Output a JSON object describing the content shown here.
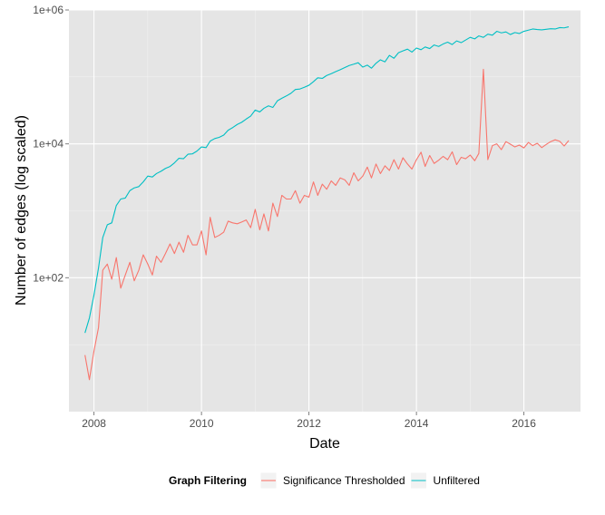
{
  "chart_data": {
    "type": "line",
    "xlabel": "Date",
    "ylabel": "Number of edges (log scaled)",
    "x_scale": "time",
    "y_scale": "log10",
    "xlim": [
      "2007-07-15",
      "2017-01-20"
    ],
    "ylim": [
      1,
      1000000
    ],
    "x_ticks": [
      {
        "value": "2008-01-01",
        "label": "2008"
      },
      {
        "value": "2010-01-01",
        "label": "2010"
      },
      {
        "value": "2012-01-01",
        "label": "2012"
      },
      {
        "value": "2014-01-01",
        "label": "2014"
      },
      {
        "value": "2016-01-01",
        "label": "2016"
      }
    ],
    "y_ticks": [
      {
        "value": 100,
        "label": "1e+02"
      },
      {
        "value": 10000,
        "label": "1e+04"
      },
      {
        "value": 1000000,
        "label": "1e+06"
      }
    ],
    "grid": true,
    "legend": {
      "title": "Graph Filtering",
      "position": "bottom"
    },
    "colors": {
      "Significance Thresholded": "#F8766D",
      "Unfiltered": "#00BFC4"
    },
    "series": [
      {
        "name": "Unfiltered",
        "points": [
          [
            "2007-11",
            15
          ],
          [
            "2007-12",
            25
          ],
          [
            "2008-01",
            55
          ],
          [
            "2008-02",
            140
          ],
          [
            "2008-03",
            400
          ],
          [
            "2008-04",
            620
          ],
          [
            "2008-05",
            660
          ],
          [
            "2008-06",
            1200
          ],
          [
            "2008-07",
            1500
          ],
          [
            "2008-08",
            1550
          ],
          [
            "2008-09",
            2000
          ],
          [
            "2008-10",
            2200
          ],
          [
            "2008-11",
            2300
          ],
          [
            "2008-12",
            2700
          ],
          [
            "2009-01",
            3300
          ],
          [
            "2009-02",
            3200
          ],
          [
            "2009-03",
            3600
          ],
          [
            "2009-04",
            3900
          ],
          [
            "2009-05",
            4300
          ],
          [
            "2009-06",
            4600
          ],
          [
            "2009-07",
            5200
          ],
          [
            "2009-08",
            6100
          ],
          [
            "2009-09",
            6000
          ],
          [
            "2009-10",
            7000
          ],
          [
            "2009-11",
            7100
          ],
          [
            "2009-12",
            7800
          ],
          [
            "2010-01",
            9000
          ],
          [
            "2010-02",
            8800
          ],
          [
            "2010-03",
            11000
          ],
          [
            "2010-04",
            12000
          ],
          [
            "2010-05",
            12500
          ],
          [
            "2010-06",
            13500
          ],
          [
            "2010-07",
            16000
          ],
          [
            "2010-08",
            17500
          ],
          [
            "2010-09",
            19500
          ],
          [
            "2010-10",
            21000
          ],
          [
            "2010-11",
            23500
          ],
          [
            "2010-12",
            26000
          ],
          [
            "2011-01",
            32000
          ],
          [
            "2011-02",
            30000
          ],
          [
            "2011-03",
            34000
          ],
          [
            "2011-04",
            37000
          ],
          [
            "2011-05",
            35000
          ],
          [
            "2011-06",
            44000
          ],
          [
            "2011-07",
            48000
          ],
          [
            "2011-08",
            52000
          ],
          [
            "2011-09",
            57000
          ],
          [
            "2011-10",
            65000
          ],
          [
            "2011-11",
            66000
          ],
          [
            "2011-12",
            70000
          ],
          [
            "2012-01",
            75000
          ],
          [
            "2012-02",
            85000
          ],
          [
            "2012-03",
            97000
          ],
          [
            "2012-04",
            95000
          ],
          [
            "2012-05",
            105000
          ],
          [
            "2012-06",
            112000
          ],
          [
            "2012-07",
            120000
          ],
          [
            "2012-08",
            128000
          ],
          [
            "2012-09",
            138000
          ],
          [
            "2012-10",
            148000
          ],
          [
            "2012-11",
            155000
          ],
          [
            "2012-12",
            163000
          ],
          [
            "2013-01",
            140000
          ],
          [
            "2013-02",
            150000
          ],
          [
            "2013-03",
            135000
          ],
          [
            "2013-04",
            160000
          ],
          [
            "2013-05",
            180000
          ],
          [
            "2013-06",
            168000
          ],
          [
            "2013-07",
            210000
          ],
          [
            "2013-08",
            190000
          ],
          [
            "2013-09",
            230000
          ],
          [
            "2013-10",
            245000
          ],
          [
            "2013-11",
            260000
          ],
          [
            "2013-12",
            235000
          ],
          [
            "2014-01",
            270000
          ],
          [
            "2014-02",
            255000
          ],
          [
            "2014-03",
            280000
          ],
          [
            "2014-04",
            265000
          ],
          [
            "2014-05",
            300000
          ],
          [
            "2014-06",
            285000
          ],
          [
            "2014-07",
            310000
          ],
          [
            "2014-08",
            330000
          ],
          [
            "2014-09",
            305000
          ],
          [
            "2014-10",
            345000
          ],
          [
            "2014-11",
            325000
          ],
          [
            "2014-12",
            355000
          ],
          [
            "2015-01",
            390000
          ],
          [
            "2015-02",
            370000
          ],
          [
            "2015-03",
            410000
          ],
          [
            "2015-04",
            390000
          ],
          [
            "2015-05",
            435000
          ],
          [
            "2015-06",
            420000
          ],
          [
            "2015-07",
            480000
          ],
          [
            "2015-08",
            455000
          ],
          [
            "2015-09",
            470000
          ],
          [
            "2015-10",
            430000
          ],
          [
            "2015-11",
            460000
          ],
          [
            "2015-12",
            445000
          ],
          [
            "2016-01",
            480000
          ],
          [
            "2016-02",
            500000
          ],
          [
            "2016-03",
            520000
          ],
          [
            "2016-04",
            510000
          ],
          [
            "2016-05",
            505000
          ],
          [
            "2016-06",
            515000
          ],
          [
            "2016-07",
            525000
          ],
          [
            "2016-08",
            520000
          ],
          [
            "2016-09",
            545000
          ],
          [
            "2016-10",
            540000
          ],
          [
            "2016-11",
            560000
          ]
        ]
      },
      {
        "name": "Significance Thresholded",
        "points": [
          [
            "2007-11",
            7
          ],
          [
            "2007-12",
            3
          ],
          [
            "2008-01",
            8
          ],
          [
            "2008-02",
            18
          ],
          [
            "2008-03",
            130
          ],
          [
            "2008-04",
            160
          ],
          [
            "2008-05",
            95
          ],
          [
            "2008-06",
            200
          ],
          [
            "2008-07",
            70
          ],
          [
            "2008-08",
            110
          ],
          [
            "2008-09",
            170
          ],
          [
            "2008-10",
            90
          ],
          [
            "2008-11",
            130
          ],
          [
            "2008-12",
            220
          ],
          [
            "2009-01",
            160
          ],
          [
            "2009-02",
            110
          ],
          [
            "2009-03",
            210
          ],
          [
            "2009-04",
            170
          ],
          [
            "2009-05",
            230
          ],
          [
            "2009-06",
            320
          ],
          [
            "2009-07",
            230
          ],
          [
            "2009-08",
            340
          ],
          [
            "2009-09",
            240
          ],
          [
            "2009-10",
            430
          ],
          [
            "2009-11",
            310
          ],
          [
            "2009-12",
            310
          ],
          [
            "2010-01",
            500
          ],
          [
            "2010-02",
            220
          ],
          [
            "2010-03",
            800
          ],
          [
            "2010-04",
            400
          ],
          [
            "2010-05",
            430
          ],
          [
            "2010-06",
            480
          ],
          [
            "2010-07",
            700
          ],
          [
            "2010-08",
            660
          ],
          [
            "2010-09",
            640
          ],
          [
            "2010-10",
            680
          ],
          [
            "2010-11",
            730
          ],
          [
            "2010-12",
            560
          ],
          [
            "2011-01",
            1050
          ],
          [
            "2011-02",
            520
          ],
          [
            "2011-03",
            900
          ],
          [
            "2011-04",
            500
          ],
          [
            "2011-05",
            1300
          ],
          [
            "2011-06",
            820
          ],
          [
            "2011-07",
            1700
          ],
          [
            "2011-08",
            1500
          ],
          [
            "2011-09",
            1500
          ],
          [
            "2011-10",
            2000
          ],
          [
            "2011-11",
            1300
          ],
          [
            "2011-12",
            1700
          ],
          [
            "2012-01",
            1600
          ],
          [
            "2012-02",
            2700
          ],
          [
            "2012-03",
            1700
          ],
          [
            "2012-04",
            2500
          ],
          [
            "2012-05",
            2100
          ],
          [
            "2012-06",
            2800
          ],
          [
            "2012-07",
            2400
          ],
          [
            "2012-08",
            3100
          ],
          [
            "2012-09",
            2900
          ],
          [
            "2012-10",
            2400
          ],
          [
            "2012-11",
            3700
          ],
          [
            "2012-12",
            2800
          ],
          [
            "2013-01",
            3300
          ],
          [
            "2013-02",
            4500
          ],
          [
            "2013-03",
            3100
          ],
          [
            "2013-04",
            5000
          ],
          [
            "2013-05",
            3600
          ],
          [
            "2013-06",
            4700
          ],
          [
            "2013-07",
            4000
          ],
          [
            "2013-08",
            5800
          ],
          [
            "2013-09",
            4200
          ],
          [
            "2013-10",
            6200
          ],
          [
            "2013-11",
            5000
          ],
          [
            "2013-12",
            4200
          ],
          [
            "2014-01",
            5800
          ],
          [
            "2014-02",
            7500
          ],
          [
            "2014-03",
            4600
          ],
          [
            "2014-04",
            6700
          ],
          [
            "2014-05",
            5100
          ],
          [
            "2014-06",
            5700
          ],
          [
            "2014-07",
            6500
          ],
          [
            "2014-08",
            5800
          ],
          [
            "2014-09",
            7600
          ],
          [
            "2014-10",
            4900
          ],
          [
            "2014-11",
            6300
          ],
          [
            "2014-12",
            6000
          ],
          [
            "2015-01",
            6800
          ],
          [
            "2015-02",
            5600
          ],
          [
            "2015-03",
            7200
          ],
          [
            "2015-04",
            130000
          ],
          [
            "2015-05",
            5800
          ],
          [
            "2015-06",
            9400
          ],
          [
            "2015-07",
            10000
          ],
          [
            "2015-08",
            8200
          ],
          [
            "2015-09",
            10800
          ],
          [
            "2015-10",
            9900
          ],
          [
            "2015-11",
            9000
          ],
          [
            "2015-12",
            9600
          ],
          [
            "2016-01",
            8700
          ],
          [
            "2016-02",
            10500
          ],
          [
            "2016-03",
            9400
          ],
          [
            "2016-04",
            10200
          ],
          [
            "2016-05",
            8800
          ],
          [
            "2016-06",
            9800
          ],
          [
            "2016-07",
            10800
          ],
          [
            "2016-08",
            11500
          ],
          [
            "2016-09",
            10900
          ],
          [
            "2016-10",
            9300
          ],
          [
            "2016-11",
            11200
          ]
        ]
      }
    ]
  }
}
